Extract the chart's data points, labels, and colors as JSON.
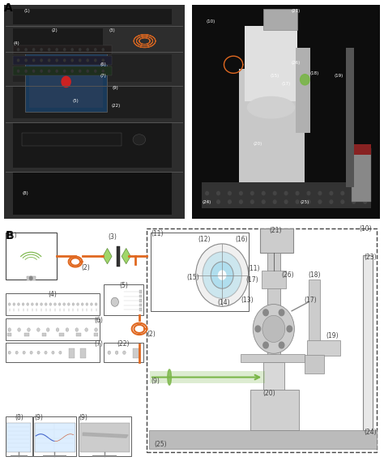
{
  "fig_width": 4.74,
  "fig_height": 5.69,
  "dpi": 100,
  "bg_color": "#ffffff",
  "panel_a_label": "A",
  "panel_b_label": "B",
  "orange_color": "#e06820",
  "green_color": "#7ab648",
  "light_gray": "#cccccc",
  "mid_gray": "#888888",
  "dark_gray": "#444444",
  "cyan_color": "#aaddee",
  "blue_color": "#4488cc",
  "label_font": 5.5,
  "panel_label_font": 10
}
